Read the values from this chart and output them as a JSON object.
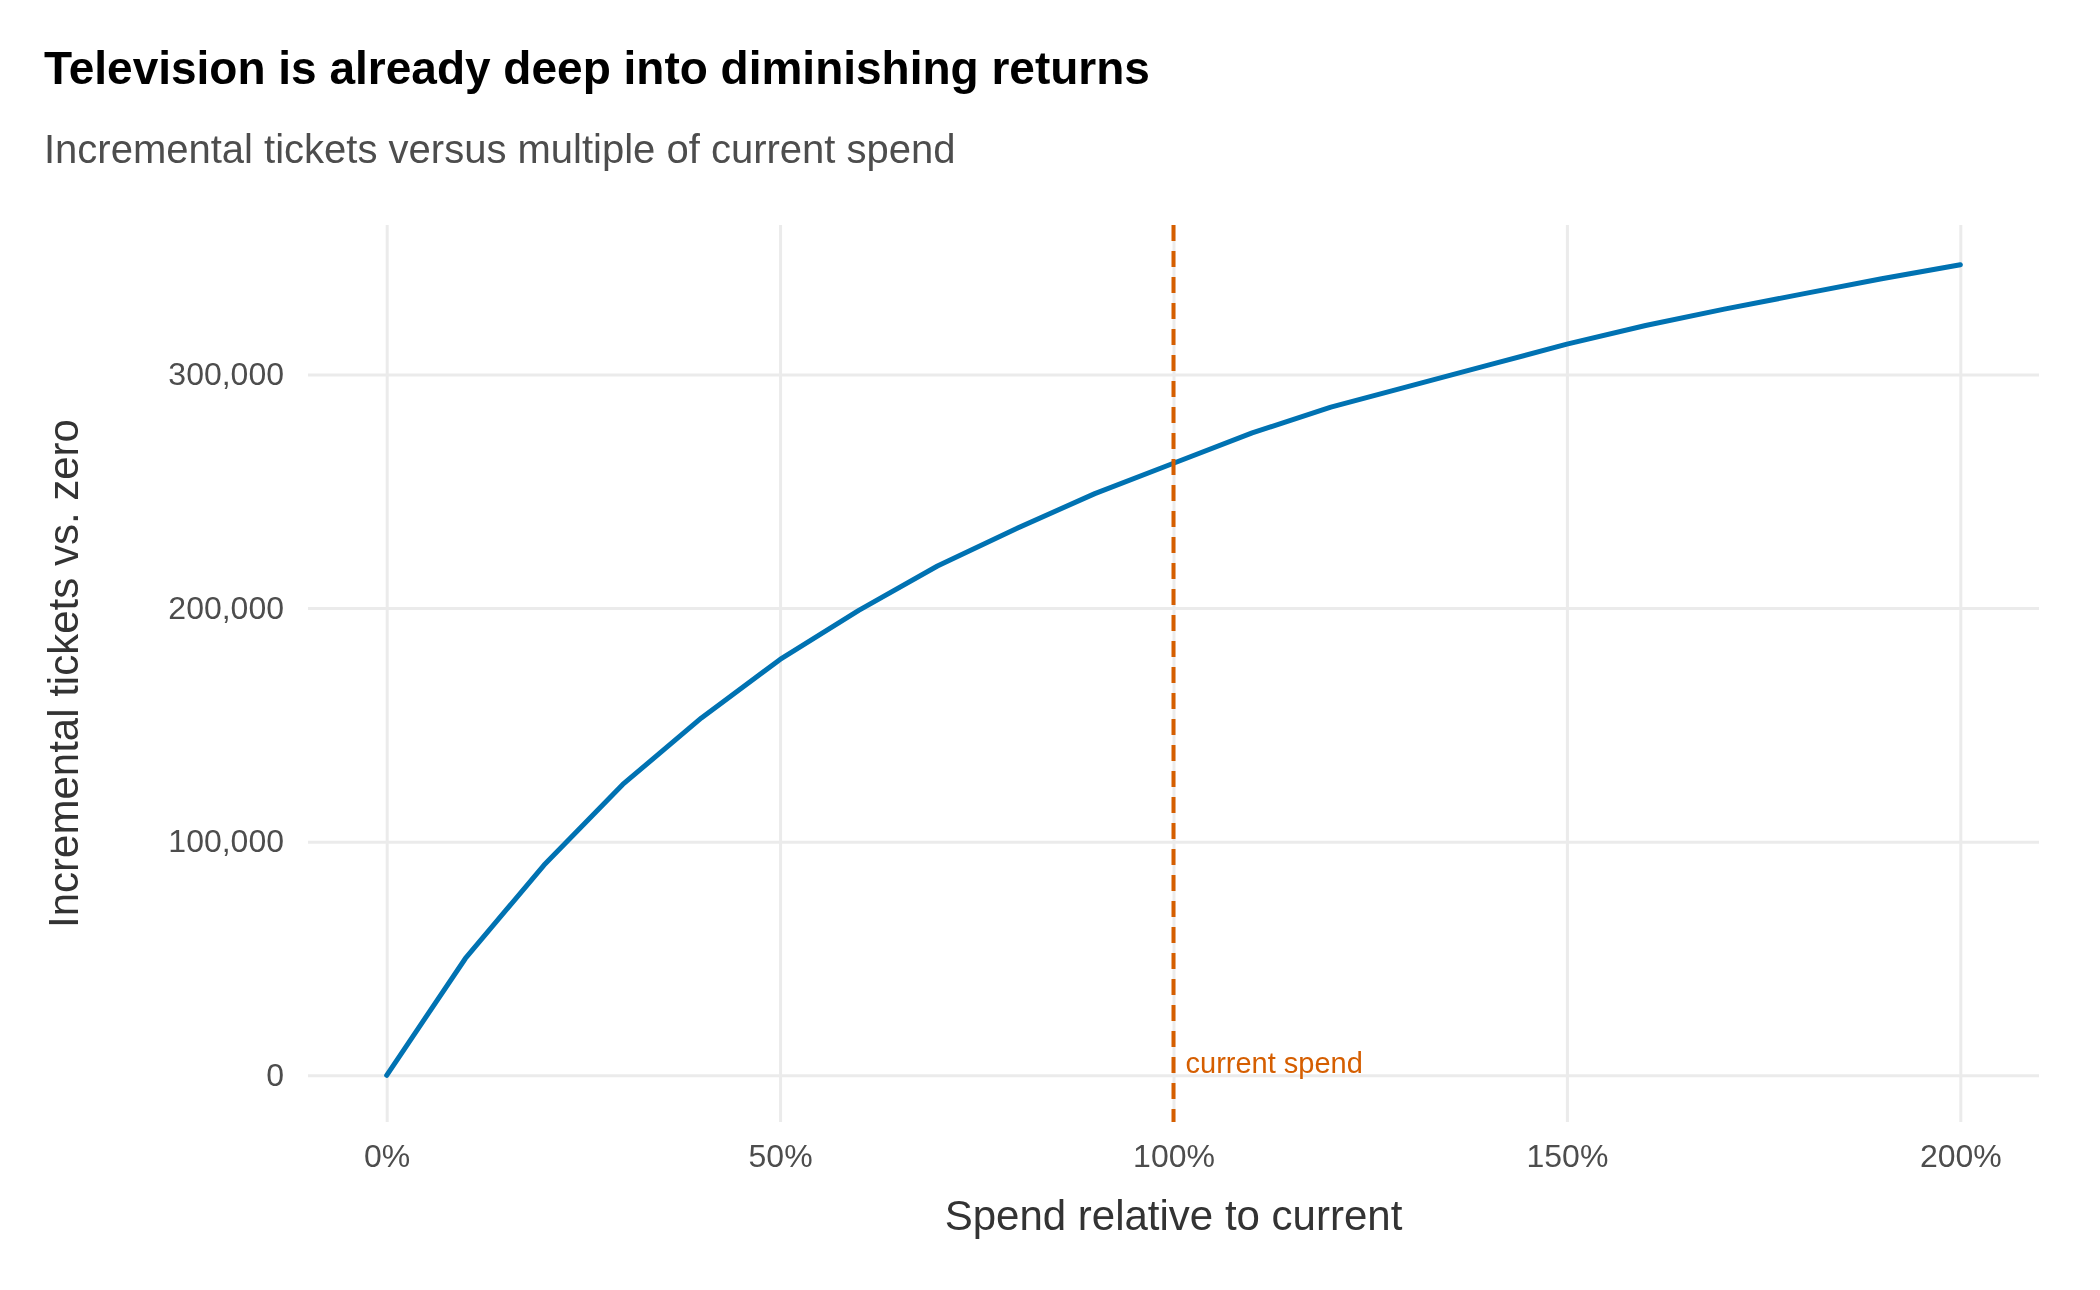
{
  "chart_data": {
    "type": "line",
    "title": "Television is already deep into diminishing returns",
    "subtitle": "Incremental tickets versus multiple of current spend",
    "xlabel": "Spend relative to current",
    "ylabel": "Incremental tickets vs. zero",
    "x": [
      0,
      10,
      20,
      30,
      40,
      50,
      60,
      70,
      80,
      90,
      100,
      110,
      120,
      130,
      140,
      150,
      160,
      170,
      180,
      190,
      200
    ],
    "series": [
      {
        "color": "#0072b2",
        "values": [
          0,
          50000,
          90000,
          124500,
          153000,
          178000,
          199000,
          218000,
          234000,
          249000,
          262000,
          275000,
          286000,
          295000,
          304000,
          313000,
          321000,
          328000,
          334500,
          341000,
          347000
        ]
      }
    ],
    "xlim": [
      -10,
      210
    ],
    "ylim": [
      -20000,
      364000
    ],
    "xticks": [
      {
        "value": 0,
        "label": "0%"
      },
      {
        "value": 50,
        "label": "50%"
      },
      {
        "value": 100,
        "label": "100%"
      },
      {
        "value": 150,
        "label": "150%"
      },
      {
        "value": 200,
        "label": "200%"
      }
    ],
    "yticks": [
      0,
      {
        "value": 100000,
        "label": "100,000"
      },
      {
        "value": 200000,
        "label": "200,000"
      },
      {
        "value": 300000,
        "label": "300,000"
      }
    ],
    "grid": true,
    "line_style": "solid",
    "marker": "none",
    "ref_lines": [
      {
        "axis": "x",
        "value": 100,
        "label": "current spend",
        "color": "#d55e00",
        "line_style": "dashed"
      }
    ]
  }
}
